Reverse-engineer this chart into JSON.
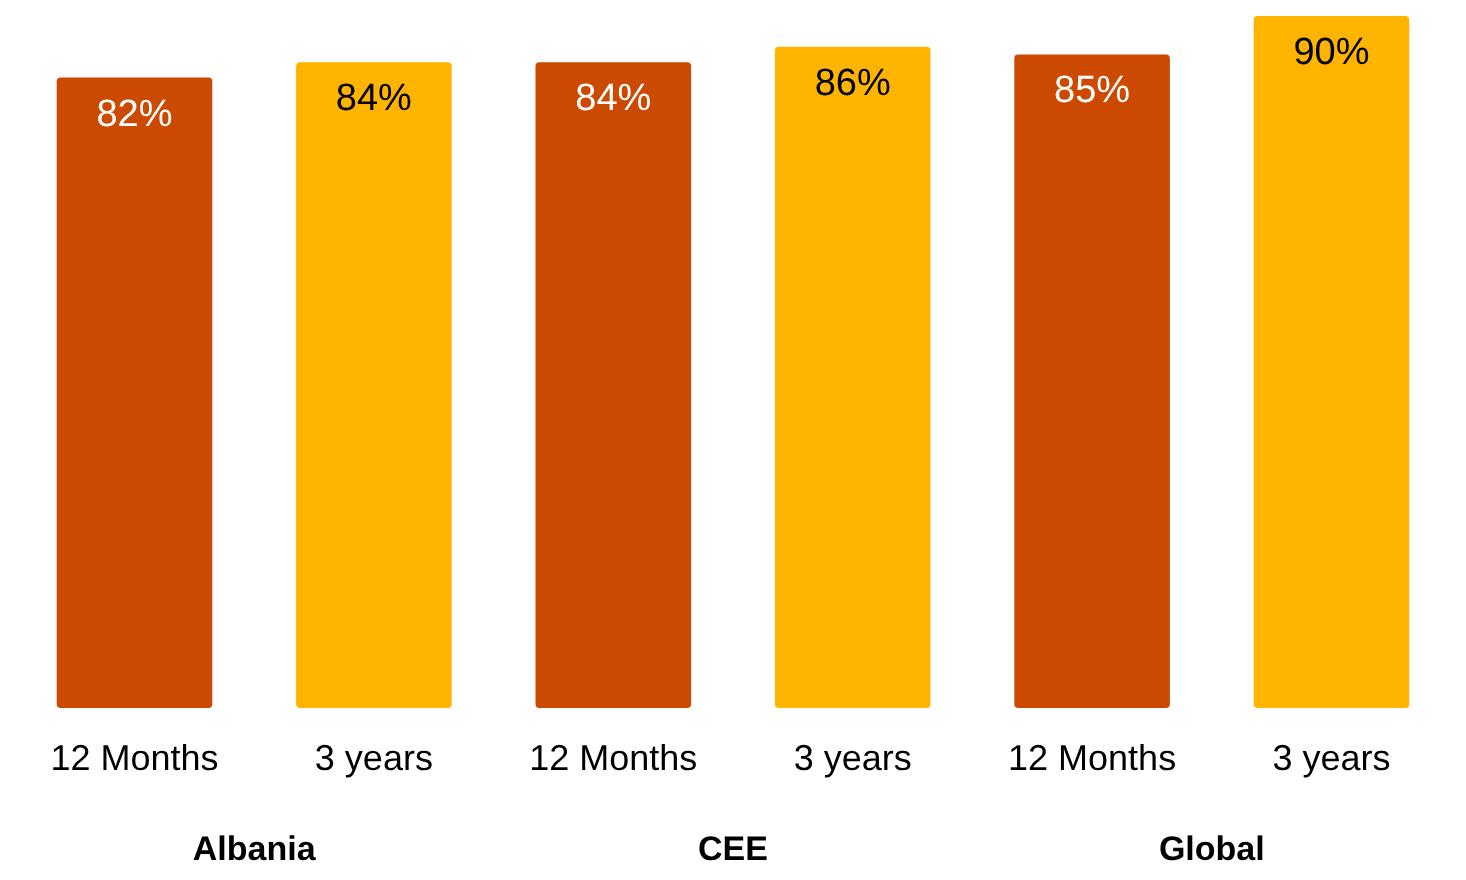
{
  "chart_data": {
    "type": "bar",
    "relative": false,
    "categories": [
      "12 Months",
      "3 years",
      "12 Months",
      "3 years",
      "12 Months",
      "3 years"
    ],
    "values": [
      82,
      84,
      84,
      86,
      85,
      90
    ],
    "colors": [
      "#cc4a00",
      "#ffb400",
      "#cc4a00",
      "#ffb400",
      "#cc4a00",
      "#ffb400"
    ],
    "value_labels": [
      "82%",
      "84%",
      "84%",
      "86%",
      "85%",
      "90%"
    ],
    "annotations": [
      "Albania",
      "CEE",
      "Global"
    ]
  }
}
